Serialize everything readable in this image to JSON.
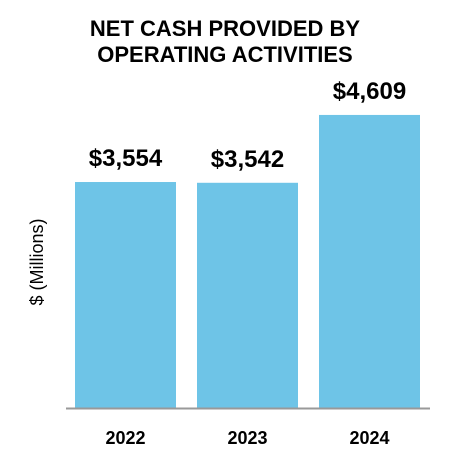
{
  "chart_data": {
    "type": "bar",
    "title": [
      "NET CASH PROVIDED BY",
      "OPERATING ACTIVITIES"
    ],
    "ylabel": "$ (Millions)",
    "xlabel": "",
    "categories": [
      "2022",
      "2023",
      "2024"
    ],
    "values": [
      3554,
      3542,
      4609
    ],
    "value_labels": [
      "$3,554",
      "$3,542",
      "$4,609"
    ],
    "ylim": [
      0,
      5300
    ],
    "grid": false,
    "legend": "none",
    "colors": {
      "bar": "#6ec4e7",
      "axis": "#999999",
      "text": "#000000"
    }
  }
}
